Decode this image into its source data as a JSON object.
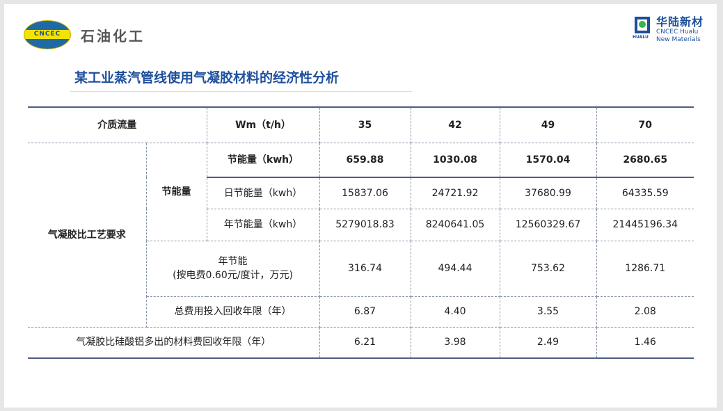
{
  "logos": {
    "left_mark_text": "CNCEC",
    "left_name": "石油化工",
    "right_mark_text": "HUALU",
    "right_name_cn": "华陆新材",
    "right_name_en1": "CNCEC Hualu",
    "right_name_en2": "New Materials"
  },
  "title": "某工业蒸汽管线使用气凝胶材料的经济性分析",
  "table": {
    "header": {
      "label": "介质流量",
      "unit": "Wm（t/h）",
      "flows": [
        "35",
        "42",
        "49",
        "70"
      ]
    },
    "group_label": "气凝胶比工艺要求",
    "sub_group_label": "节能量",
    "rows": [
      {
        "label": "节能量（kwh）",
        "values": [
          "659.88",
          "1030.08",
          "1570.04",
          "2680.65"
        ]
      },
      {
        "label": "日节能量（kwh）",
        "values": [
          "15837.06",
          "24721.92",
          "37680.99",
          "64335.59"
        ]
      },
      {
        "label": "年节能量（kwh）",
        "values": [
          "5279018.83",
          "8240641.05",
          "12560329.67",
          "21445196.34"
        ]
      },
      {
        "label": "年节能",
        "label2": "(按电费0.60元/度计，万元)",
        "values": [
          "316.74",
          "494.44",
          "753.62",
          "1286.71"
        ]
      },
      {
        "label": "总费用投入回收年限（年）",
        "values": [
          "6.87",
          "4.40",
          "3.55",
          "2.08"
        ]
      },
      {
        "label": "气凝胶比硅酸铝多出的材料费回收年限（年）",
        "values": [
          "6.21",
          "3.98",
          "2.49",
          "1.46"
        ]
      }
    ]
  }
}
